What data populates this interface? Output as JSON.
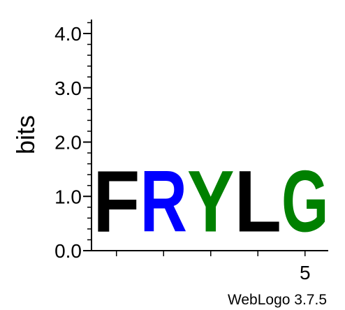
{
  "chart_data": {
    "type": "sequence-logo",
    "ylabel": "bits",
    "ylim": [
      0,
      4.3
    ],
    "y_ticks": [
      "0.0",
      "1.0",
      "2.0",
      "3.0",
      "4.0"
    ],
    "y_tick_values": [
      0,
      1,
      2,
      3,
      4
    ],
    "x_ticks": [
      "5"
    ],
    "x_tick_positions": [
      5
    ],
    "positions": [
      {
        "position": 1,
        "letter": "F",
        "bits": 1.8,
        "color": "#000000"
      },
      {
        "position": 2,
        "letter": "R",
        "bits": 1.8,
        "color": "#0000ff"
      },
      {
        "position": 3,
        "letter": "Y",
        "bits": 1.8,
        "color": "#008000"
      },
      {
        "position": 4,
        "letter": "L",
        "bits": 1.8,
        "color": "#000000"
      },
      {
        "position": 5,
        "letter": "G",
        "bits": 1.8,
        "color": "#008000"
      }
    ],
    "grid": false,
    "legend": "none"
  },
  "footer": {
    "credit": "WebLogo 3.7.5"
  }
}
